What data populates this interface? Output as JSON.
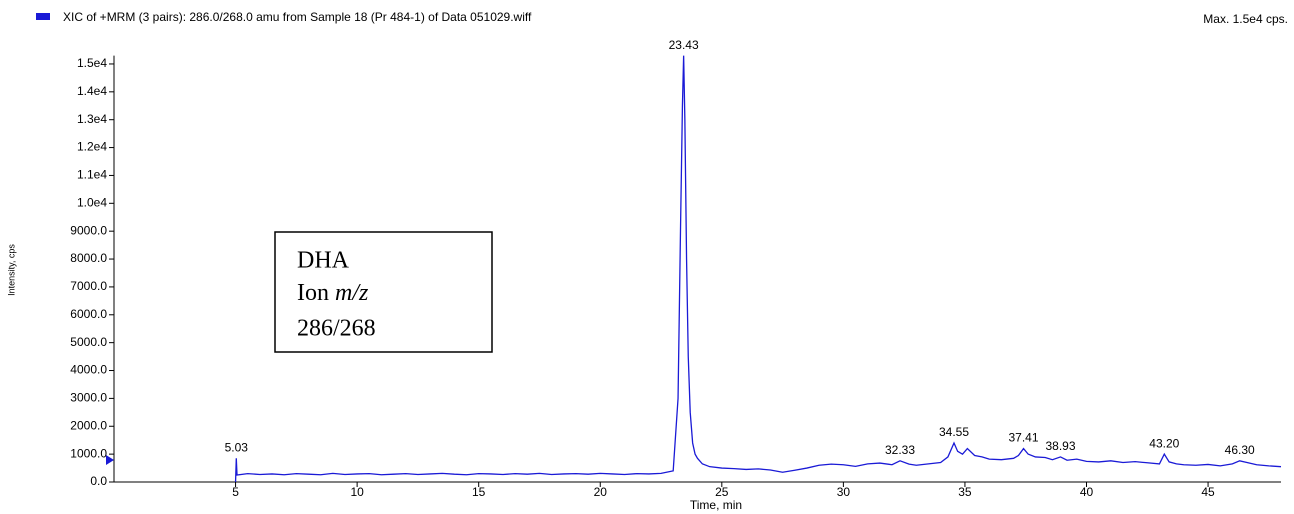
{
  "chart_data": {
    "type": "line",
    "title": "Max. 1.5e4 cps.",
    "x_label": "Time, min",
    "y_label": "Intensity, cps",
    "annotation": [
      "DHA",
      "Ion",
      "m/z",
      "286/268"
    ],
    "xlim": [
      0,
      48
    ],
    "xticks": [
      5,
      10,
      15,
      20,
      25,
      30,
      35,
      40,
      45
    ],
    "ylim": [
      0,
      15300
    ],
    "yticks": [
      {
        "value": 0,
        "label": "0.0"
      },
      {
        "value": 1000,
        "label": "1000.0"
      },
      {
        "value": 2000,
        "label": "2000.0"
      },
      {
        "value": 3000,
        "label": "3000.0"
      },
      {
        "value": 4000,
        "label": "4000.0"
      },
      {
        "value": 5000,
        "label": "5000.0"
      },
      {
        "value": 6000,
        "label": "6000.0"
      },
      {
        "value": 7000,
        "label": "7000.0"
      },
      {
        "value": 8000,
        "label": "8000.0"
      },
      {
        "value": 9000,
        "label": "9000.0"
      },
      {
        "value": 10000,
        "label": "1.0e4"
      },
      {
        "value": 11000,
        "label": "1.1e4"
      },
      {
        "value": 12000,
        "label": "1.2e4"
      },
      {
        "value": 13000,
        "label": "1.3e4"
      },
      {
        "value": 14000,
        "label": "1.4e4"
      },
      {
        "value": 15000,
        "label": "1.5e4"
      }
    ],
    "grid": false,
    "peak_x": [
      5.03,
      23.43,
      32.33,
      34.55,
      37.41,
      38.93,
      43.2,
      46.3
    ],
    "peak_heights": [
      850,
      15300,
      760,
      1400,
      1200,
      900,
      1000,
      760
    ],
    "peak_labels": [
      "5.03",
      "23.43",
      "32.33",
      "34.55",
      "37.41",
      "38.93",
      "43.20",
      "46.30"
    ],
    "series": [
      {
        "name": "XIC of +MRM (3 pairs): 286.0/268.0 amu from Sample 18 (Pr 484-1) of Data 051029.wiff",
        "color": "#1a1ad6",
        "x": [
          5.0,
          5.03,
          5.06,
          5.5,
          6,
          6.5,
          7,
          7.5,
          8,
          8.5,
          9,
          9.5,
          10,
          10.5,
          11,
          11.5,
          12,
          12.5,
          13,
          13.5,
          14,
          14.5,
          15,
          15.5,
          16,
          16.5,
          17,
          17.5,
          18,
          18.5,
          19,
          19.5,
          20,
          20.5,
          21,
          21.5,
          22,
          22.5,
          23,
          23.2,
          23.3,
          23.38,
          23.43,
          23.48,
          23.55,
          23.62,
          23.7,
          23.8,
          23.9,
          24,
          24.2,
          24.5,
          25,
          25.5,
          26,
          26.5,
          27,
          27.5,
          28,
          28.5,
          29,
          29.5,
          30,
          30.5,
          31,
          31.5,
          32,
          32.33,
          32.7,
          33,
          33.5,
          34,
          34.3,
          34.55,
          34.7,
          34.9,
          35.1,
          35.4,
          35.7,
          36,
          36.5,
          37,
          37.2,
          37.41,
          37.6,
          37.9,
          38.3,
          38.6,
          38.93,
          39.2,
          39.6,
          40,
          40.5,
          41,
          41.5,
          42,
          42.5,
          43,
          43.2,
          43.4,
          43.7,
          44,
          44.5,
          45,
          45.5,
          46,
          46.3,
          46.6,
          47,
          47.5,
          48
        ],
        "values": [
          0,
          850,
          250,
          300,
          270,
          290,
          260,
          300,
          280,
          260,
          310,
          270,
          290,
          300,
          260,
          280,
          300,
          270,
          290,
          310,
          280,
          260,
          300,
          290,
          270,
          300,
          280,
          310,
          270,
          290,
          300,
          280,
          310,
          290,
          270,
          300,
          290,
          310,
          400,
          3000,
          9000,
          13500,
          15300,
          13000,
          8000,
          4500,
          2500,
          1400,
          1000,
          850,
          650,
          550,
          500,
          480,
          450,
          470,
          430,
          350,
          420,
          500,
          600,
          640,
          620,
          560,
          650,
          680,
          620,
          760,
          640,
          600,
          650,
          700,
          900,
          1400,
          1100,
          1000,
          1200,
          950,
          900,
          820,
          800,
          850,
          950,
          1200,
          1000,
          900,
          880,
          800,
          900,
          780,
          820,
          740,
          720,
          760,
          700,
          730,
          690,
          650,
          1000,
          720,
          650,
          620,
          600,
          630,
          580,
          650,
          760,
          700,
          620,
          580,
          550
        ]
      }
    ]
  }
}
